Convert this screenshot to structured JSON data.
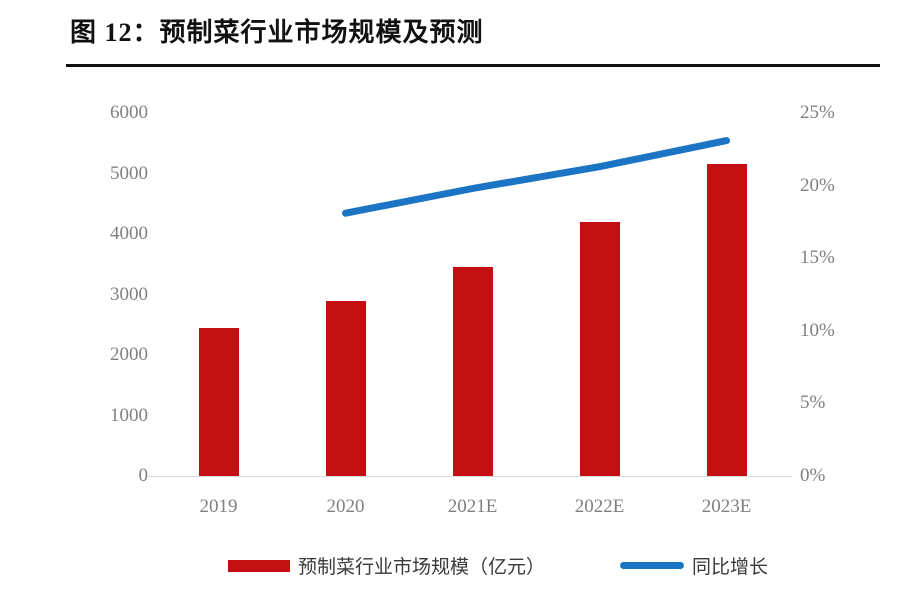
{
  "header": {
    "title": "图 12：预制菜行业市场规模及预测"
  },
  "colors": {
    "bar_red": "#c40f12",
    "line_blue": "#1b75c4",
    "axis_text_gray": "#808080",
    "baseline_gray": "#d9d9d9",
    "title_black": "#111111"
  },
  "legend": {
    "bar_label": "预制菜行业市场规模（亿元）",
    "line_label": "同比增长"
  },
  "chart_data": {
    "type": "bar",
    "title": "图 12：预制菜行业市场规模及预测",
    "categories": [
      "2019",
      "2020",
      "2021E",
      "2022E",
      "2023E"
    ],
    "series": [
      {
        "name": "预制菜行业市场规模（亿元）",
        "type": "bar",
        "axis": "left",
        "values": [
          2445,
          2888,
          3459,
          4196,
          5165
        ],
        "color": "#c40f12"
      },
      {
        "name": "同比增长",
        "type": "line",
        "axis": "right",
        "values": [
          null,
          18.1,
          19.8,
          21.3,
          23.1
        ],
        "color": "#1b75c4"
      }
    ],
    "left_axis": {
      "min": 0,
      "max": 6000,
      "step": 1000,
      "tick_labels": [
        "0",
        "1000",
        "2000",
        "3000",
        "4000",
        "5000",
        "6000"
      ]
    },
    "right_axis": {
      "min": 0,
      "max": 25,
      "step": 5,
      "tick_labels": [
        "0%",
        "5%",
        "10%",
        "15%",
        "20%",
        "25%"
      ]
    },
    "grid": false,
    "legend_position": "bottom"
  }
}
